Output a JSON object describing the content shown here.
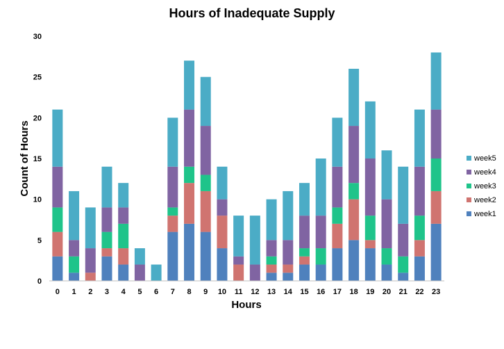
{
  "chart_data": {
    "type": "bar",
    "stacked": true,
    "title": "Hours of Inadequate Supply",
    "xlabel": "Hours",
    "ylabel": "Count of Hours",
    "ylim": [
      0,
      30
    ],
    "yticks": [
      0,
      5,
      10,
      15,
      20,
      25,
      30
    ],
    "grid": false,
    "legend_position": "right",
    "categories": [
      "0",
      "1",
      "2",
      "3",
      "4",
      "5",
      "6",
      "7",
      "8",
      "9",
      "10",
      "11",
      "12",
      "13",
      "14",
      "15",
      "16",
      "17",
      "18",
      "19",
      "20",
      "21",
      "22",
      "23"
    ],
    "series": [
      {
        "name": "week1",
        "color": "#4f81bd",
        "values": [
          3,
          1,
          0,
          3,
          2,
          0,
          0,
          6,
          7,
          6,
          4,
          0,
          0,
          1,
          1,
          2,
          2,
          4,
          5,
          4,
          2,
          1,
          3,
          7
        ]
      },
      {
        "name": "week2",
        "color": "#d07470",
        "values": [
          3,
          0,
          1,
          1,
          2,
          0,
          0,
          2,
          5,
          5,
          4,
          2,
          0,
          1,
          1,
          1,
          0,
          3,
          5,
          1,
          0,
          0,
          2,
          4
        ]
      },
      {
        "name": "week3",
        "color": "#1fc48a",
        "values": [
          3,
          2,
          0,
          2,
          3,
          0,
          0,
          1,
          2,
          2,
          0,
          0,
          0,
          1,
          0,
          1,
          2,
          2,
          2,
          3,
          2,
          2,
          3,
          4
        ]
      },
      {
        "name": "week4",
        "color": "#8064a2",
        "values": [
          5,
          2,
          3,
          3,
          2,
          2,
          0,
          5,
          7,
          6,
          2,
          1,
          2,
          2,
          3,
          4,
          4,
          5,
          7,
          7,
          6,
          4,
          6,
          6
        ]
      },
      {
        "name": "week5",
        "color": "#4bacc6",
        "values": [
          7,
          6,
          5,
          5,
          3,
          2,
          2,
          6,
          6,
          6,
          4,
          5,
          6,
          5,
          6,
          4,
          7,
          6,
          7,
          7,
          6,
          7,
          7,
          7
        ]
      }
    ]
  }
}
